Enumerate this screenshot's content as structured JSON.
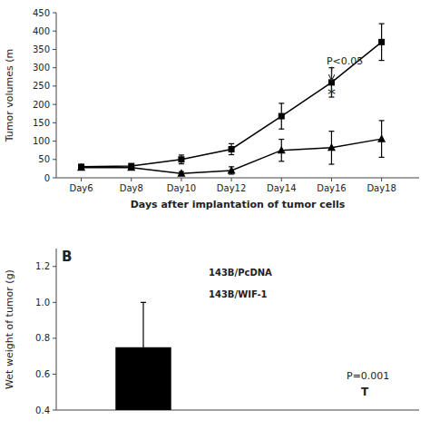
{
  "chart_data": [
    {
      "type": "line",
      "x": [
        6,
        8,
        10,
        12,
        14,
        16,
        18
      ],
      "series": [
        {
          "values": [
            30,
            32,
            50,
            78,
            168,
            260,
            370
          ],
          "errors": [
            5,
            5,
            12,
            15,
            35,
            40,
            50
          ],
          "color": "black",
          "marker": "square",
          "line_style": "solid"
        },
        {
          "values": [
            28,
            28,
            12,
            20,
            75,
            82,
            106
          ],
          "errors": [
            5,
            3,
            5,
            10,
            30,
            45,
            50
          ],
          "color": "black",
          "marker": "triangle",
          "line_style": "solid"
        }
      ],
      "xlabel": "Days after implantation of tumor cells",
      "ylabel": "Tumor volumes (m",
      "xlim": [
        5,
        19.5
      ],
      "xticks": [
        {
          "value": 6,
          "label": "Day6"
        },
        {
          "value": 8,
          "label": "Day8"
        },
        {
          "value": 10,
          "label": "Day10"
        },
        {
          "value": 12,
          "label": "Day12"
        },
        {
          "value": 14,
          "label": "Day14"
        },
        {
          "value": 16,
          "label": "Day16"
        },
        {
          "value": 18,
          "label": "Day18"
        }
      ],
      "ylim": [
        0,
        450
      ],
      "yticks": [
        0,
        50,
        100,
        150,
        200,
        250,
        300,
        350,
        400,
        450
      ],
      "grid": false,
      "annotations": [
        {
          "text": "P<0.05",
          "x": 15.8,
          "y": 310,
          "arrow_x": 16,
          "arrow_y": 262
        },
        {
          "text": "*",
          "x": 16,
          "y": 262
        }
      ]
    },
    {
      "type": "bar",
      "title": "B",
      "categories": [
        null
      ],
      "values": [
        0.75
      ],
      "errors": [
        0.25
      ],
      "color": "black",
      "ylabel": "Wet weight of tumor (g)",
      "ylim": [
        0.4,
        1.3
      ],
      "yticks": [
        0.4,
        0.6,
        0.8,
        {
          "value": 1,
          "label": "1.0"
        },
        1.2
      ],
      "grid": false,
      "tick_labels": "y",
      "annotations": [
        {
          "text": "P=0.001"
        },
        {
          "text": "T"
        },
        {
          "text": "143B/PcDNA"
        },
        {
          "text": "143B/WIF-1"
        }
      ]
    }
  ]
}
